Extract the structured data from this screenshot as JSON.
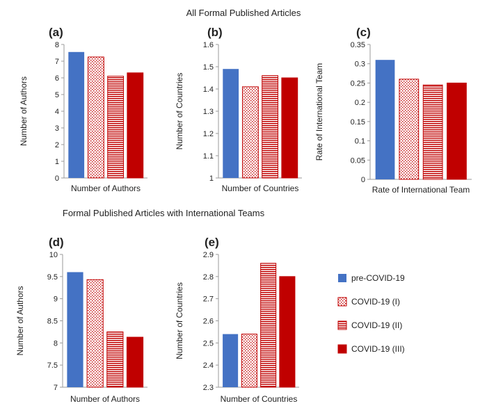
{
  "figure": {
    "top_title": "All Formal Published Articles",
    "bottom_title": "Formal Published Articles with International Teams"
  },
  "legend": [
    {
      "name": "pre-COVID-19",
      "color": "#4472C4",
      "pattern": "solid"
    },
    {
      "name": "COVID-19 (I)",
      "color": "#C00000",
      "pattern": "dots"
    },
    {
      "name": "COVID-19 (II)",
      "color": "#C00000",
      "pattern": "hlines"
    },
    {
      "name": "COVID-19 (III)",
      "color": "#C00000",
      "pattern": "solid"
    }
  ],
  "chart_data": [
    {
      "panel": "(a)",
      "type": "bar",
      "title": "All Formal Published Articles",
      "ylabel": "Number of Authors",
      "xlabel": "Number of Authors",
      "ylim": [
        0,
        8
      ],
      "yticks": [
        "0",
        "1",
        "2",
        "3",
        "4",
        "5",
        "6",
        "7",
        "8"
      ],
      "series": [
        {
          "name": "pre-COVID-19",
          "values": [
            7.55
          ]
        },
        {
          "name": "COVID-19 (I)",
          "values": [
            7.25
          ]
        },
        {
          "name": "COVID-19 (II)",
          "values": [
            6.1
          ]
        },
        {
          "name": "COVID-19 (III)",
          "values": [
            6.3
          ]
        }
      ]
    },
    {
      "panel": "(b)",
      "type": "bar",
      "title": "All Formal Published Articles",
      "ylabel": "Number of Countries",
      "xlabel": "Number of Countries",
      "ylim": [
        1,
        1.6
      ],
      "yticks": [
        "1",
        "1.1",
        "1.2",
        "1.3",
        "1.4",
        "1.5",
        "1.6"
      ],
      "series": [
        {
          "name": "pre-COVID-19",
          "values": [
            1.49
          ]
        },
        {
          "name": "COVID-19 (I)",
          "values": [
            1.41
          ]
        },
        {
          "name": "COVID-19 (II)",
          "values": [
            1.46
          ]
        },
        {
          "name": "COVID-19 (III)",
          "values": [
            1.45
          ]
        }
      ]
    },
    {
      "panel": "(c)",
      "type": "bar",
      "title": "All Formal Published Articles",
      "ylabel": "Rate of International Team",
      "xlabel": "Rate of International Team",
      "ylim": [
        0,
        0.35
      ],
      "yticks": [
        "0",
        "0.05",
        "0.1",
        "0.15",
        "0.2",
        "0.25",
        "0.3",
        "0.35"
      ],
      "series": [
        {
          "name": "pre-COVID-19",
          "values": [
            0.31
          ]
        },
        {
          "name": "COVID-19 (I)",
          "values": [
            0.26
          ]
        },
        {
          "name": "COVID-19 (II)",
          "values": [
            0.245
          ]
        },
        {
          "name": "COVID-19 (III)",
          "values": [
            0.25
          ]
        }
      ]
    },
    {
      "panel": "(d)",
      "type": "bar",
      "title": "Formal Published Articles with International Teams",
      "ylabel": "Number of Authors",
      "xlabel": "Number of Authors",
      "ylim": [
        7,
        10
      ],
      "yticks": [
        "7",
        "7.5",
        "8",
        "8.5",
        "9",
        "9.5",
        "10"
      ],
      "series": [
        {
          "name": "pre-COVID-19",
          "values": [
            9.6
          ]
        },
        {
          "name": "COVID-19 (I)",
          "values": [
            9.43
          ]
        },
        {
          "name": "COVID-19 (II)",
          "values": [
            8.25
          ]
        },
        {
          "name": "COVID-19 (III)",
          "values": [
            8.13
          ]
        }
      ]
    },
    {
      "panel": "(e)",
      "type": "bar",
      "title": "Formal Published Articles with International Teams",
      "ylabel": "Number of Countries",
      "xlabel": "Number of Countries",
      "ylim": [
        2.3,
        2.9
      ],
      "yticks": [
        "2.3",
        "2.4",
        "2.5",
        "2.6",
        "2.7",
        "2.8",
        "2.9"
      ],
      "series": [
        {
          "name": "pre-COVID-19",
          "values": [
            2.54
          ]
        },
        {
          "name": "COVID-19 (I)",
          "values": [
            2.54
          ]
        },
        {
          "name": "COVID-19 (II)",
          "values": [
            2.86
          ]
        },
        {
          "name": "COVID-19 (III)",
          "values": [
            2.8
          ]
        }
      ]
    }
  ]
}
